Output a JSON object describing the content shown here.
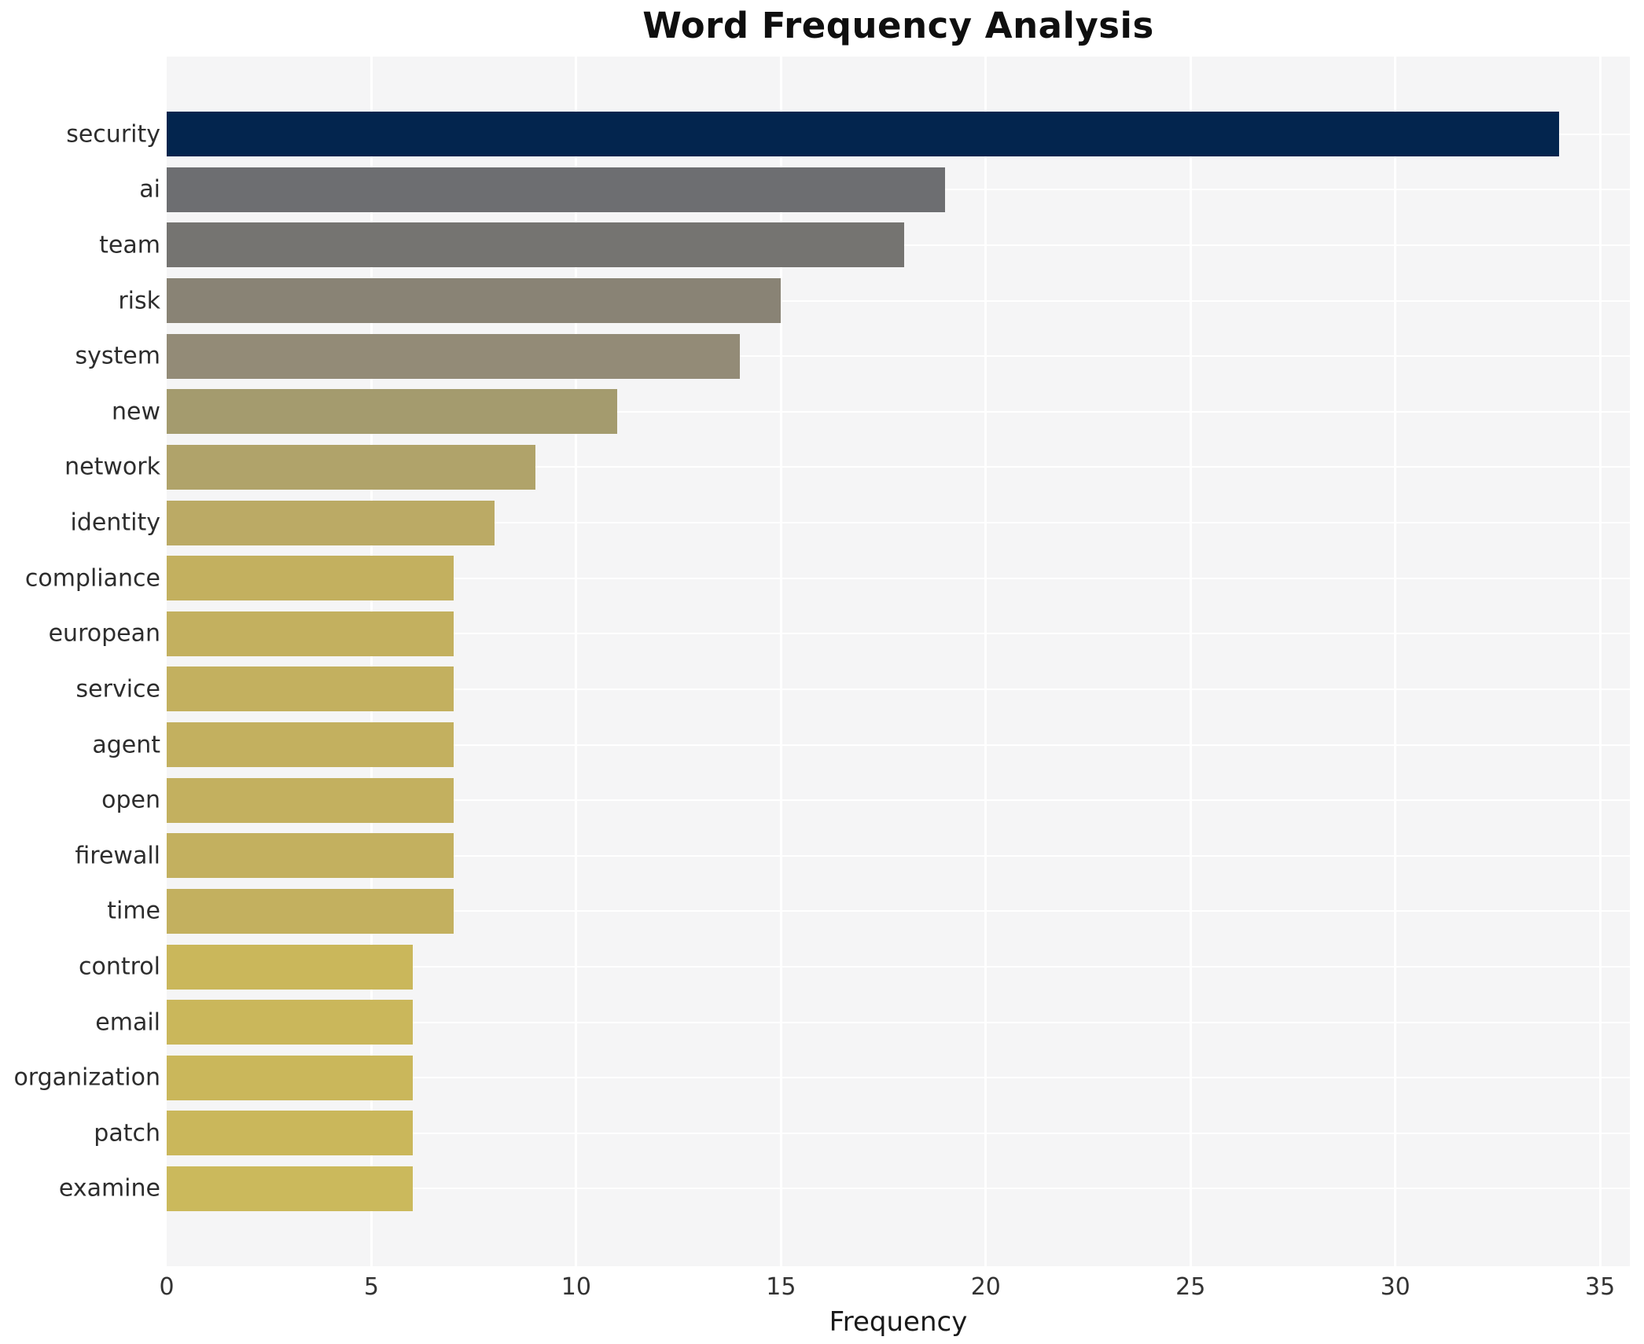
{
  "title": "Word Frequency Analysis",
  "chart_data": {
    "type": "bar",
    "orientation": "horizontal",
    "title": "Word Frequency Analysis",
    "xlabel": "Frequency",
    "ylabel": "",
    "xlim": [
      0,
      35.75
    ],
    "x_ticks": [
      0,
      5,
      10,
      15,
      20,
      25,
      30,
      35
    ],
    "grid": true,
    "legend": "none",
    "plot_background": "#f5f5f6",
    "gridline_color": "#ffffff",
    "categories": [
      "security",
      "ai",
      "team",
      "risk",
      "system",
      "new",
      "network",
      "identity",
      "compliance",
      "european",
      "service",
      "agent",
      "open",
      "firewall",
      "time",
      "control",
      "email",
      "organization",
      "patch",
      "examine"
    ],
    "values": [
      34,
      19,
      18,
      15,
      14,
      11,
      9,
      8,
      7,
      7,
      7,
      7,
      7,
      7,
      7,
      6,
      6,
      6,
      6,
      6
    ],
    "bar_colors": [
      "#03254e",
      "#6d6e71",
      "#757471",
      "#898375",
      "#938b77",
      "#a49b6e",
      "#b0a36a",
      "#bbaa65",
      "#c3b05f",
      "#c3b05f",
      "#c3b05f",
      "#c3b05f",
      "#c3b05f",
      "#c3b05f",
      "#c3b05f",
      "#cab75b",
      "#cab75b",
      "#cab75b",
      "#cab75b",
      "#cbb95c"
    ]
  }
}
